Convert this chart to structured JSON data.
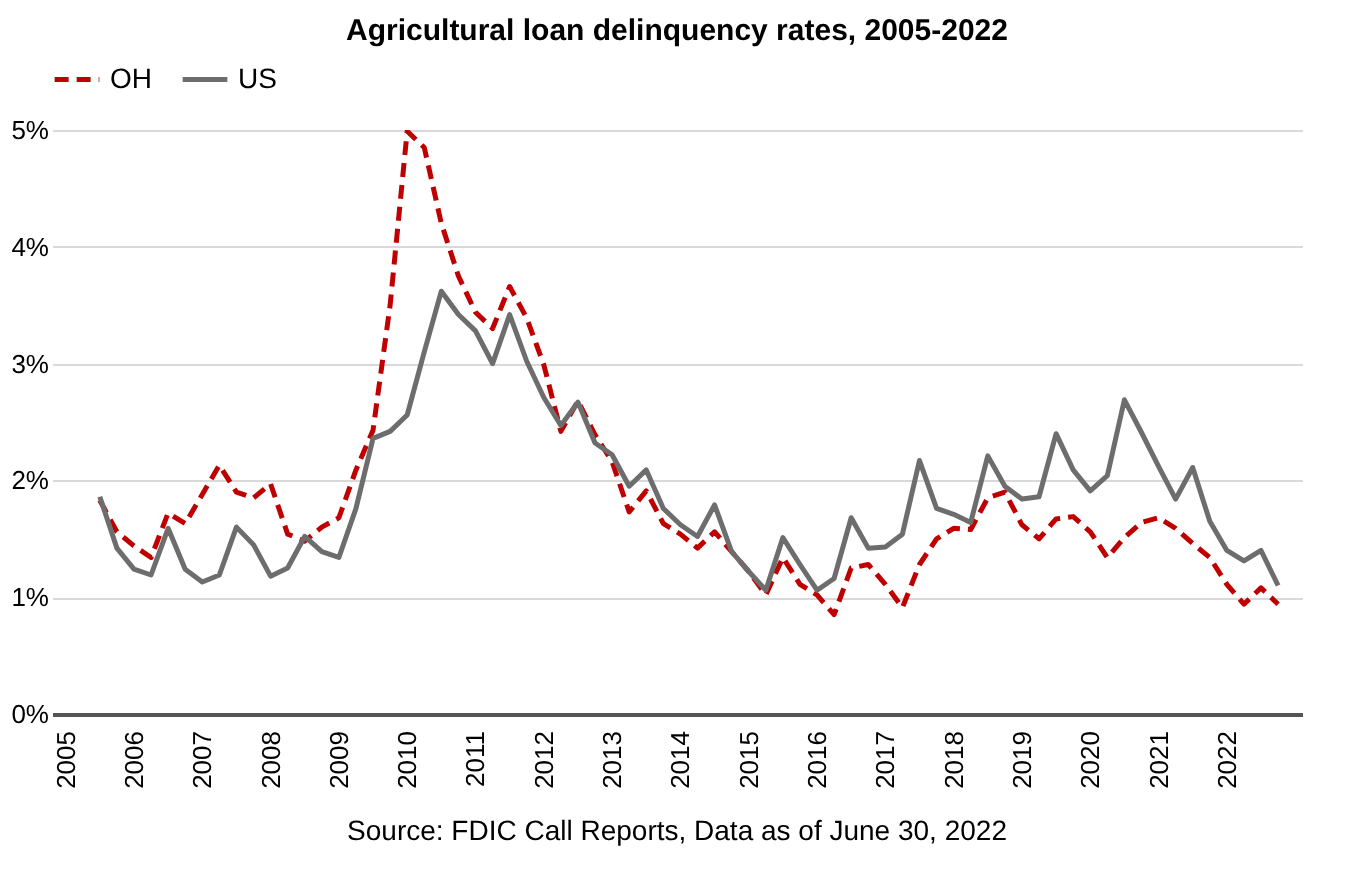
{
  "chart_data": {
    "type": "line",
    "title": "Agricultural loan delinquency rates, 2005-2022",
    "x": [
      2005.5,
      2005.75,
      2006,
      2006.25,
      2006.5,
      2006.75,
      2007,
      2007.25,
      2007.5,
      2007.75,
      2008,
      2008.25,
      2008.5,
      2008.75,
      2009,
      2009.25,
      2009.5,
      2009.75,
      2010,
      2010.25,
      2010.5,
      2010.75,
      2011,
      2011.25,
      2011.5,
      2011.75,
      2012,
      2012.25,
      2012.5,
      2012.75,
      2013,
      2013.25,
      2013.5,
      2013.75,
      2014,
      2014.25,
      2014.5,
      2014.75,
      2015,
      2015.25,
      2015.5,
      2015.75,
      2016,
      2016.25,
      2016.5,
      2016.75,
      2017,
      2017.25,
      2017.5,
      2017.75,
      2018,
      2018.25,
      2018.5,
      2018.75,
      2019,
      2019.25,
      2019.5,
      2019.75,
      2020,
      2020.25,
      2020.5,
      2020.75,
      2021,
      2021.25,
      2021.5,
      2021.75,
      2022,
      2022.25,
      2022.5,
      2022.75
    ],
    "series": [
      {
        "name": "OH",
        "color": "#c00000",
        "line_style": "dashed",
        "values": [
          1.83,
          1.56,
          1.44,
          1.34,
          1.72,
          1.63,
          1.88,
          2.13,
          1.9,
          1.85,
          1.97,
          1.54,
          1.48,
          1.6,
          1.68,
          2.09,
          2.43,
          3.5,
          4.99,
          4.85,
          4.2,
          3.75,
          3.44,
          3.3,
          3.66,
          3.39,
          2.99,
          2.42,
          2.68,
          2.39,
          2.16,
          1.73,
          1.91,
          1.63,
          1.54,
          1.42,
          1.56,
          1.39,
          1.22,
          1.02,
          1.34,
          1.11,
          1.02,
          0.85,
          1.25,
          1.28,
          1.11,
          0.91,
          1.28,
          1.5,
          1.59,
          1.58,
          1.85,
          1.9,
          1.62,
          1.5,
          1.67,
          1.69,
          1.56,
          1.34,
          1.51,
          1.64,
          1.68,
          1.59,
          1.46,
          1.34,
          1.11,
          0.94,
          1.08,
          0.94
        ]
      },
      {
        "name": "US",
        "color": "#6d6d6d",
        "line_style": "solid",
        "values": [
          1.86,
          1.42,
          1.24,
          1.19,
          1.59,
          1.24,
          1.13,
          1.19,
          1.6,
          1.45,
          1.18,
          1.25,
          1.52,
          1.39,
          1.34,
          1.76,
          2.36,
          2.42,
          2.56,
          3.1,
          3.62,
          3.42,
          3.28,
          3.0,
          3.42,
          3.02,
          2.71,
          2.47,
          2.67,
          2.32,
          2.22,
          1.95,
          2.09,
          1.76,
          1.62,
          1.52,
          1.79,
          1.39,
          1.22,
          1.06,
          1.51,
          1.28,
          1.06,
          1.16,
          1.68,
          1.42,
          1.43,
          1.54,
          2.17,
          1.76,
          1.71,
          1.64,
          2.21,
          1.95,
          1.84,
          1.86,
          2.4,
          2.09,
          1.91,
          2.04,
          2.69,
          2.41,
          2.12,
          1.84,
          2.11,
          1.65,
          1.4,
          1.31,
          1.4,
          1.1
        ]
      }
    ],
    "xlim": [
      2004.8,
      2023.1
    ],
    "xticks": [
      2005,
      2006,
      2007,
      2008,
      2009,
      2010,
      2011,
      2012,
      2013,
      2014,
      2015,
      2016,
      2017,
      2018,
      2019,
      2020,
      2021,
      2022
    ],
    "ylim": [
      0,
      5
    ],
    "yticks": [
      {
        "value": 0,
        "label": "0%"
      },
      {
        "value": 1,
        "label": "1%"
      },
      {
        "value": 2,
        "label": "2%"
      },
      {
        "value": 3,
        "label": "3%"
      },
      {
        "value": 4,
        "label": "4%"
      },
      {
        "value": 5,
        "label": "5%"
      }
    ],
    "grid": "y",
    "legend": "top",
    "marker": "none",
    "annotations": [
      "Source: FDIC Call Reports, Data as of June 30, 2022"
    ]
  }
}
